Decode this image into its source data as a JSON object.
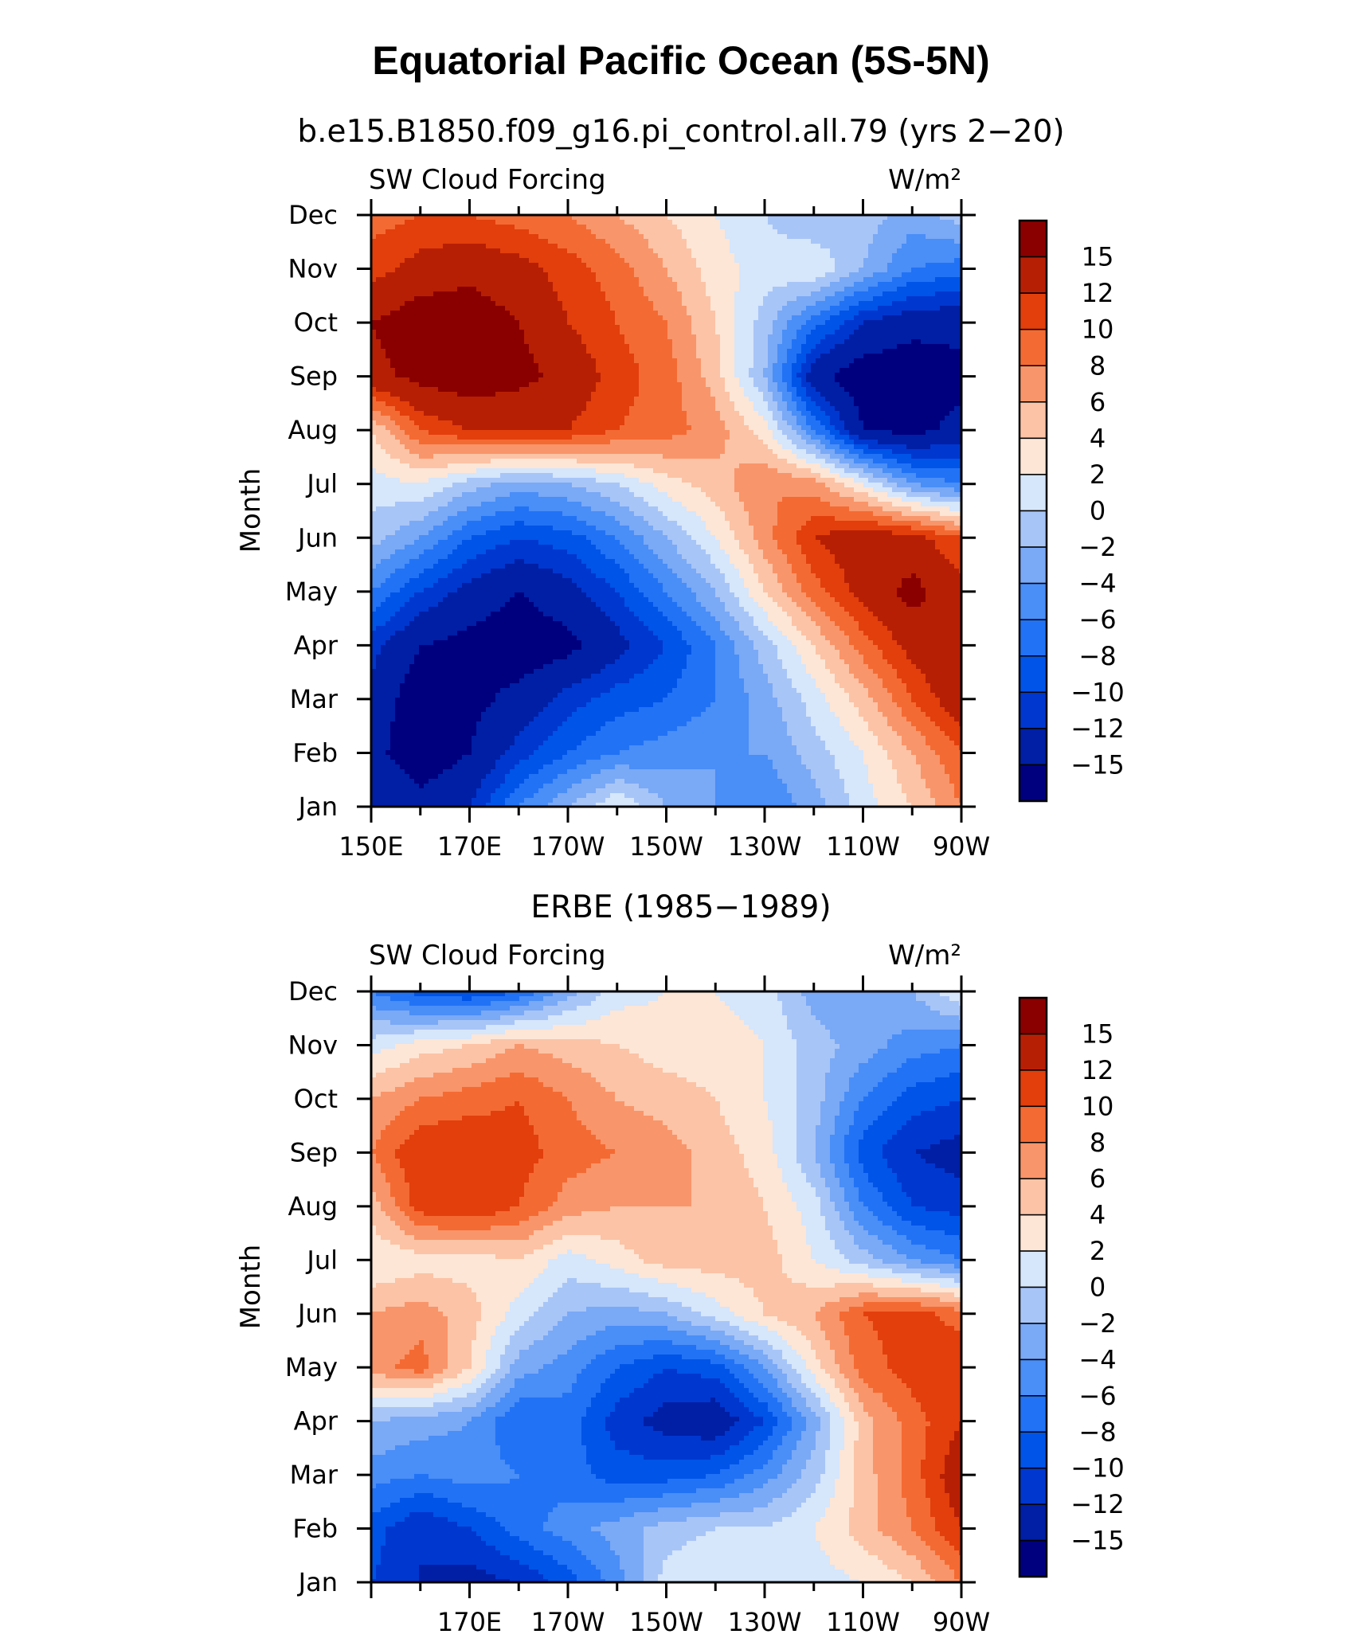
{
  "title": "Equatorial Pacific Ocean (5S-5N)",
  "chart_data": [
    {
      "type": "heatmap",
      "title": "b.e15.B1850.f09_g16.pi_control.all.79 (yrs 2−20)",
      "left_label": "SW Cloud Forcing",
      "right_label": "W/m²",
      "ylabel": "Month",
      "months": [
        "Jan",
        "Feb",
        "Mar",
        "Apr",
        "May",
        "Jun",
        "Jul",
        "Aug",
        "Sep",
        "Oct",
        "Nov",
        "Dec"
      ],
      "x_ticks": [
        "150E",
        "170E",
        "170W",
        "150W",
        "130W",
        "110W",
        "90W"
      ],
      "xlim": [
        "150E",
        "90W"
      ],
      "colorbar_labels": [
        "15",
        "12",
        "10",
        "8",
        "6",
        "4",
        "2",
        "0",
        "−2",
        "−4",
        "−6",
        "−8",
        "−10",
        "−12",
        "−15"
      ],
      "levels": [
        -15,
        -12,
        -10,
        -8,
        -6,
        -4,
        -2,
        0,
        2,
        4,
        6,
        8,
        10,
        12,
        15
      ],
      "colors": [
        "#00007f",
        "#001fa5",
        "#0037cf",
        "#0054e8",
        "#2172f5",
        "#4a8ef7",
        "#7aa9f6",
        "#a8c5f7",
        "#d6e6fb",
        "#fde6d6",
        "#fcc3a6",
        "#f9956a",
        "#f46a33",
        "#e23f0c",
        "#b71f04",
        "#8a0000"
      ],
      "grid_lon": [
        150,
        160,
        170,
        180,
        190,
        200,
        210,
        220,
        230,
        240,
        250,
        260,
        270
      ],
      "values": [
        [
          -12,
          -14,
          -12,
          -6,
          -2,
          2,
          -2,
          -4,
          -6,
          -3,
          1,
          4,
          8
        ],
        [
          -14,
          -17,
          -15,
          -11,
          -8,
          -6,
          -5,
          -4,
          -4,
          -1,
          2,
          6,
          10
        ],
        [
          -13,
          -17,
          -16,
          -14,
          -11,
          -9,
          -8,
          -6,
          -3,
          1,
          5,
          10,
          14
        ],
        [
          -11,
          -15,
          -16,
          -17,
          -16,
          -13,
          -10,
          -6,
          -1,
          4,
          9,
          13,
          15
        ],
        [
          -6,
          -10,
          -13,
          -15,
          -13,
          -10,
          -6,
          -2,
          4,
          9,
          13,
          16,
          13
        ],
        [
          -1,
          -4,
          -8,
          -10,
          -9,
          -6,
          -2,
          2,
          7,
          12,
          14,
          13,
          10
        ],
        [
          1,
          2,
          -1,
          -3,
          -2,
          0,
          3,
          5,
          8,
          7,
          2,
          -4,
          -6
        ],
        [
          4,
          10,
          12,
          12,
          12,
          10,
          9,
          7,
          3,
          -6,
          -15,
          -16,
          -14
        ],
        [
          14,
          16,
          17,
          16,
          14,
          11,
          9,
          5,
          -2,
          -14,
          -17,
          -17,
          -16
        ],
        [
          15,
          17,
          17,
          15,
          12,
          10,
          8,
          4,
          -1,
          -7,
          -12,
          -14,
          -14
        ],
        [
          11,
          13,
          14,
          13,
          11,
          9,
          6,
          3,
          1,
          2,
          -2,
          -6,
          -7
        ],
        [
          9,
          10,
          10,
          9,
          8,
          6,
          4,
          2,
          0,
          -2,
          -1,
          -3,
          -1
        ]
      ]
    },
    {
      "type": "heatmap",
      "title": "ERBE (1985−1989)",
      "left_label": "SW Cloud Forcing",
      "right_label": "W/m²",
      "ylabel": "Month",
      "months": [
        "Jan",
        "Feb",
        "Mar",
        "Apr",
        "May",
        "Jun",
        "Jul",
        "Aug",
        "Sep",
        "Oct",
        "Nov",
        "Dec"
      ],
      "x_ticks": [
        "170E",
        "170W",
        "150W",
        "130W",
        "110W",
        "90W"
      ],
      "xlim": [
        "150E",
        "90W"
      ],
      "colorbar_labels": [
        "15",
        "12",
        "10",
        "8",
        "6",
        "4",
        "2",
        "0",
        "−2",
        "−4",
        "−6",
        "−8",
        "−10",
        "−12",
        "−15"
      ],
      "levels": [
        -15,
        -12,
        -10,
        -8,
        -6,
        -4,
        -2,
        0,
        2,
        4,
        6,
        8,
        10,
        12,
        15
      ],
      "colors": [
        "#00007f",
        "#001fa5",
        "#0037cf",
        "#0054e8",
        "#2172f5",
        "#4a8ef7",
        "#7aa9f6",
        "#a8c5f7",
        "#d6e6fb",
        "#fde6d6",
        "#fcc3a6",
        "#f9956a",
        "#f46a33",
        "#e23f0c",
        "#b71f04",
        "#8a0000"
      ],
      "grid_lon": [
        150,
        160,
        170,
        180,
        190,
        200,
        210,
        220,
        230,
        240,
        250,
        260,
        270
      ],
      "values": [
        [
          -10,
          -12,
          -13,
          -12,
          -9,
          -5,
          1,
          2,
          1,
          1,
          2,
          4,
          8
        ],
        [
          -9,
          -12,
          -10,
          -7,
          -5,
          -3,
          -1,
          0,
          0,
          2,
          5,
          8,
          12
        ],
        [
          -5,
          -6,
          -5,
          -6,
          -7,
          -9,
          -9,
          -8,
          -5,
          -1,
          5,
          9,
          14
        ],
        [
          -2,
          -3,
          -4,
          -8,
          -7,
          -11,
          -13,
          -14,
          -10,
          -3,
          5,
          9,
          12
        ],
        [
          7,
          9,
          4,
          -3,
          -5,
          -8,
          -10,
          -9,
          -4,
          3,
          9,
          11,
          12
        ],
        [
          6,
          7,
          5,
          1,
          -2,
          -3,
          -2,
          1,
          4,
          6,
          10,
          11,
          9
        ],
        [
          2,
          3,
          3,
          4,
          1,
          3,
          5,
          5,
          5,
          2,
          -1,
          -4,
          -6
        ],
        [
          5,
          11,
          12,
          10,
          7,
          6,
          6,
          6,
          4,
          1,
          -6,
          -10,
          -11
        ],
        [
          8,
          12,
          12,
          11,
          9,
          8,
          7,
          5,
          3,
          -2,
          -9,
          -12,
          -13
        ],
        [
          6,
          8,
          9,
          10,
          8,
          6,
          5,
          4,
          2,
          -1,
          -6,
          -9,
          -10
        ],
        [
          1,
          3,
          4,
          6,
          5,
          4,
          3,
          3,
          2,
          -1,
          -3,
          -5,
          -6
        ],
        [
          -6,
          -9,
          -10,
          -8,
          -3,
          1,
          2,
          2,
          1,
          -3,
          -4,
          -2,
          2
        ]
      ]
    }
  ]
}
